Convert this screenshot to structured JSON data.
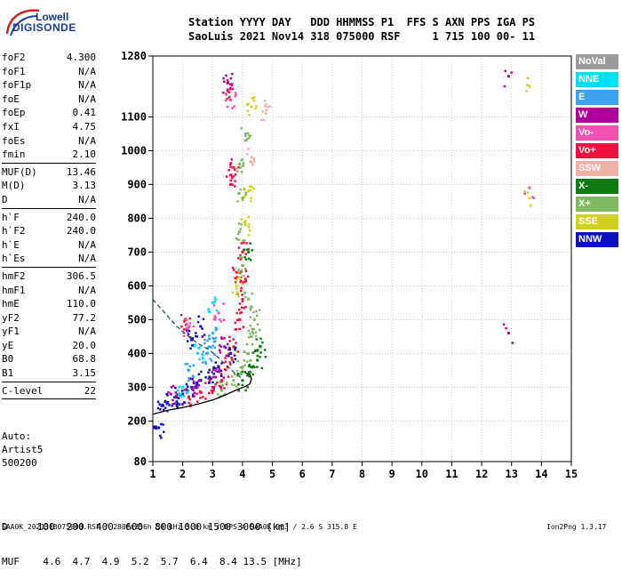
{
  "logo": {
    "line1": "Lowell",
    "line2": "DIGISONDE"
  },
  "header": {
    "row1": "Station YYYY DAY   DDD HHMMSS P1  FFS S AXN PPS IGA PS",
    "row2": "SaoLuis 2021 Nov14 318 075000 RSF     1 715 100 00- 11"
  },
  "params": {
    "group1": [
      {
        "label": "foF2",
        "value": "4.300"
      },
      {
        "label": "foF1",
        "value": "N/A"
      },
      {
        "label": "foF1p",
        "value": "N/A"
      },
      {
        "label": "foE",
        "value": "N/A"
      },
      {
        "label": "foEp",
        "value": "0.41"
      },
      {
        "label": "fxI",
        "value": "4.75"
      },
      {
        "label": "foEs",
        "value": "N/A"
      },
      {
        "label": "fmin",
        "value": "2.10"
      }
    ],
    "group2": [
      {
        "label": "MUF(D)",
        "value": "13.46"
      },
      {
        "label": "M(D)",
        "value": "3.13"
      },
      {
        "label": "D",
        "value": "N/A"
      }
    ],
    "group3": [
      {
        "label": "h`F",
        "value": "240.0"
      },
      {
        "label": "h`F2",
        "value": "240.0"
      },
      {
        "label": "h`E",
        "value": "N/A"
      },
      {
        "label": "h`Es",
        "value": "N/A"
      }
    ],
    "group4": [
      {
        "label": "hmF2",
        "value": "306.5"
      },
      {
        "label": "hmF1",
        "value": "N/A"
      },
      {
        "label": "hmE",
        "value": "110.0"
      },
      {
        "label": "yF2",
        "value": "77.2"
      },
      {
        "label": "yF1",
        "value": "N/A"
      },
      {
        "label": "yE",
        "value": "20.0"
      },
      {
        "label": "B0",
        "value": "68.8"
      },
      {
        "label": "B1",
        "value": "3.15"
      }
    ],
    "group5": [
      {
        "label": "C-level",
        "value": "22"
      }
    ]
  },
  "auto": {
    "line1": "Auto:",
    "line2": "Artist5",
    "line3": "500200"
  },
  "legend": [
    {
      "label": "NoVal",
      "color": "#9a9a9a"
    },
    {
      "label": "NNE",
      "color": "#00e0f0"
    },
    {
      "label": "E",
      "color": "#3aa0f0"
    },
    {
      "label": "W",
      "color": "#b0009a"
    },
    {
      "label": "Vo-",
      "color": "#f050b0"
    },
    {
      "label": "Vo+",
      "color": "#f01040"
    },
    {
      "label": "SSW",
      "color": "#f0b0a8"
    },
    {
      "label": "X-",
      "color": "#107a10"
    },
    {
      "label": "X+",
      "color": "#80b860"
    },
    {
      "label": "SSE",
      "color": "#d0d020"
    },
    {
      "label": "NNW",
      "color": "#1010c0"
    }
  ],
  "bottom": {
    "row1": "D     100  200  400  600  800 1000 1500 3000 [km]",
    "row2": "MUF    4.6  4.7  4.9  5.2  5.7  6.4  8.4 13.5 [MHz]"
  },
  "footer": "SAA0K_2021318075000.RSF / 280fx256h 50 kHz 5.0 km / DPS-4 SAA0K 903 / 2.6 S 315.8 E",
  "footer_version": "Ion2Png 1.3.17",
  "chart_data": {
    "type": "scatter",
    "xlabel": "",
    "ylabel": "",
    "xlim": [
      1,
      15
    ],
    "ylim": [
      80,
      1280
    ],
    "xticks": [
      1,
      2,
      3,
      4,
      5,
      6,
      7,
      8,
      9,
      10,
      11,
      12,
      13,
      14,
      15
    ],
    "yticks": [
      80,
      200,
      300,
      400,
      500,
      600,
      700,
      800,
      900,
      1000,
      1100,
      1280
    ],
    "grid": true,
    "series": [
      {
        "name": "Vo+",
        "color": "#f01040",
        "points": [
          [
            2.2,
            270
          ],
          [
            2.6,
            285
          ],
          [
            3.0,
            300
          ],
          [
            3.3,
            320
          ],
          [
            3.5,
            360
          ],
          [
            3.7,
            420
          ],
          [
            3.9,
            500
          ],
          [
            4.0,
            560
          ],
          [
            4.1,
            620
          ],
          [
            3.6,
            900
          ],
          [
            3.5,
            1180
          ],
          [
            3.7,
            950
          ],
          [
            2.1,
            500
          ],
          [
            3.8,
            640
          ],
          [
            4.0,
            700
          ]
        ]
      },
      {
        "name": "NNW",
        "color": "#1010c0",
        "points": [
          [
            1.3,
            245
          ],
          [
            1.5,
            255
          ],
          [
            1.8,
            270
          ],
          [
            2.0,
            280
          ],
          [
            2.3,
            300
          ],
          [
            2.6,
            320
          ],
          [
            2.9,
            330
          ],
          [
            3.2,
            360
          ],
          [
            3.6,
            400
          ],
          [
            2.3,
            440
          ],
          [
            2.6,
            480
          ],
          [
            1.2,
            180
          ]
        ]
      },
      {
        "name": "X+",
        "color": "#80b860",
        "points": [
          [
            3.3,
            290
          ],
          [
            3.7,
            320
          ],
          [
            4.0,
            360
          ],
          [
            4.2,
            400
          ],
          [
            4.3,
            450
          ],
          [
            4.4,
            500
          ],
          [
            4.2,
            560
          ],
          [
            4.0,
            660
          ],
          [
            3.9,
            760
          ],
          [
            4.0,
            860
          ],
          [
            3.9,
            960
          ],
          [
            4.1,
            1050
          ]
        ]
      },
      {
        "name": "X-",
        "color": "#107a10",
        "points": [
          [
            4.0,
            320
          ],
          [
            4.3,
            360
          ],
          [
            4.5,
            380
          ],
          [
            4.6,
            420
          ],
          [
            4.2,
            700
          ]
        ]
      },
      {
        "name": "W",
        "color": "#b0009a",
        "points": [
          [
            2.4,
            300
          ],
          [
            3.1,
            330
          ],
          [
            3.4,
            420
          ],
          [
            1.6,
            280
          ],
          [
            12.9,
            460
          ],
          [
            12.9,
            1220
          ],
          [
            3.5,
            1200
          ]
        ]
      },
      {
        "name": "E",
        "color": "#3aa0f0",
        "points": [
          [
            2.8,
            400
          ],
          [
            2.9,
            420
          ],
          [
            3.0,
            460
          ],
          [
            2.2,
            350
          ]
        ]
      },
      {
        "name": "NNE",
        "color": "#00e0f0",
        "points": [
          [
            2.0,
            300
          ],
          [
            2.5,
            400
          ],
          [
            3.0,
            550
          ]
        ]
      },
      {
        "name": "SSE",
        "color": "#d0d020",
        "points": [
          [
            3.8,
            600
          ],
          [
            4.1,
            780
          ],
          [
            4.2,
            880
          ],
          [
            4.3,
            1130
          ],
          [
            13.6,
            860
          ],
          [
            13.6,
            1190
          ]
        ]
      },
      {
        "name": "Vo-",
        "color": "#f050b0",
        "points": [
          [
            2.2,
            480
          ],
          [
            3.2,
            520
          ],
          [
            3.6,
            1150
          ],
          [
            13.6,
            890
          ]
        ]
      },
      {
        "name": "SSW",
        "color": "#f0b0a8",
        "points": [
          [
            4.3,
            980
          ],
          [
            4.8,
            1120
          ]
        ]
      }
    ],
    "profile_solid": [
      [
        1,
        220
      ],
      [
        1.5,
        232
      ],
      [
        2.0,
        240
      ],
      [
        2.5,
        250
      ],
      [
        3.0,
        262
      ],
      [
        3.4,
        276
      ],
      [
        3.8,
        292
      ],
      [
        4.1,
        303
      ],
      [
        4.25,
        310
      ],
      [
        4.3,
        325
      ],
      [
        4.25,
        338
      ],
      [
        4.1,
        342
      ]
    ],
    "profile_dashed": [
      [
        1.0,
        560
      ],
      [
        1.4,
        520
      ],
      [
        1.8,
        480
      ],
      [
        2.2,
        450
      ],
      [
        2.5,
        430
      ],
      [
        2.7,
        420
      ],
      [
        2.9,
        410
      ],
      [
        3.1,
        395
      ],
      [
        3.4,
        370
      ],
      [
        3.7,
        345
      ],
      [
        4.0,
        325
      ]
    ]
  }
}
